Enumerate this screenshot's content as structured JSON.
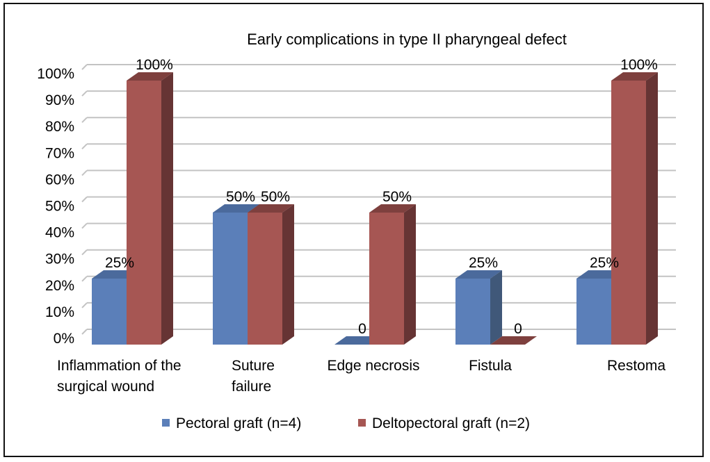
{
  "chart_data": {
    "type": "bar",
    "subtype": "3d-clustered-column",
    "title": "Early complications in type II pharyngeal defect",
    "categories": [
      [
        "Inflammation of the",
        "surgical wound"
      ],
      [
        "Suture",
        "failure"
      ],
      [
        "Edge necrosis"
      ],
      [
        "Fistula"
      ],
      [
        "Restoma"
      ]
    ],
    "series": [
      {
        "name": "Pectoral graft (n=4)",
        "values": [
          25,
          50,
          0,
          25,
          25
        ],
        "labels": [
          "25%",
          "50%",
          "0",
          "25%",
          "25%"
        ],
        "color": "#5b7fb9"
      },
      {
        "name": "Deltopectoral graft (n=2)",
        "values": [
          100,
          50,
          50,
          0,
          100
        ],
        "labels": [
          "100%",
          "50%",
          "50%",
          "0",
          "100%"
        ],
        "color": "#a65653"
      }
    ],
    "yticks": [
      "0%",
      "10%",
      "20%",
      "30%",
      "40%",
      "50%",
      "60%",
      "70%",
      "80%",
      "90%",
      "100%"
    ],
    "ylim": [
      0,
      100
    ],
    "grid": true,
    "legend": "bottom"
  }
}
